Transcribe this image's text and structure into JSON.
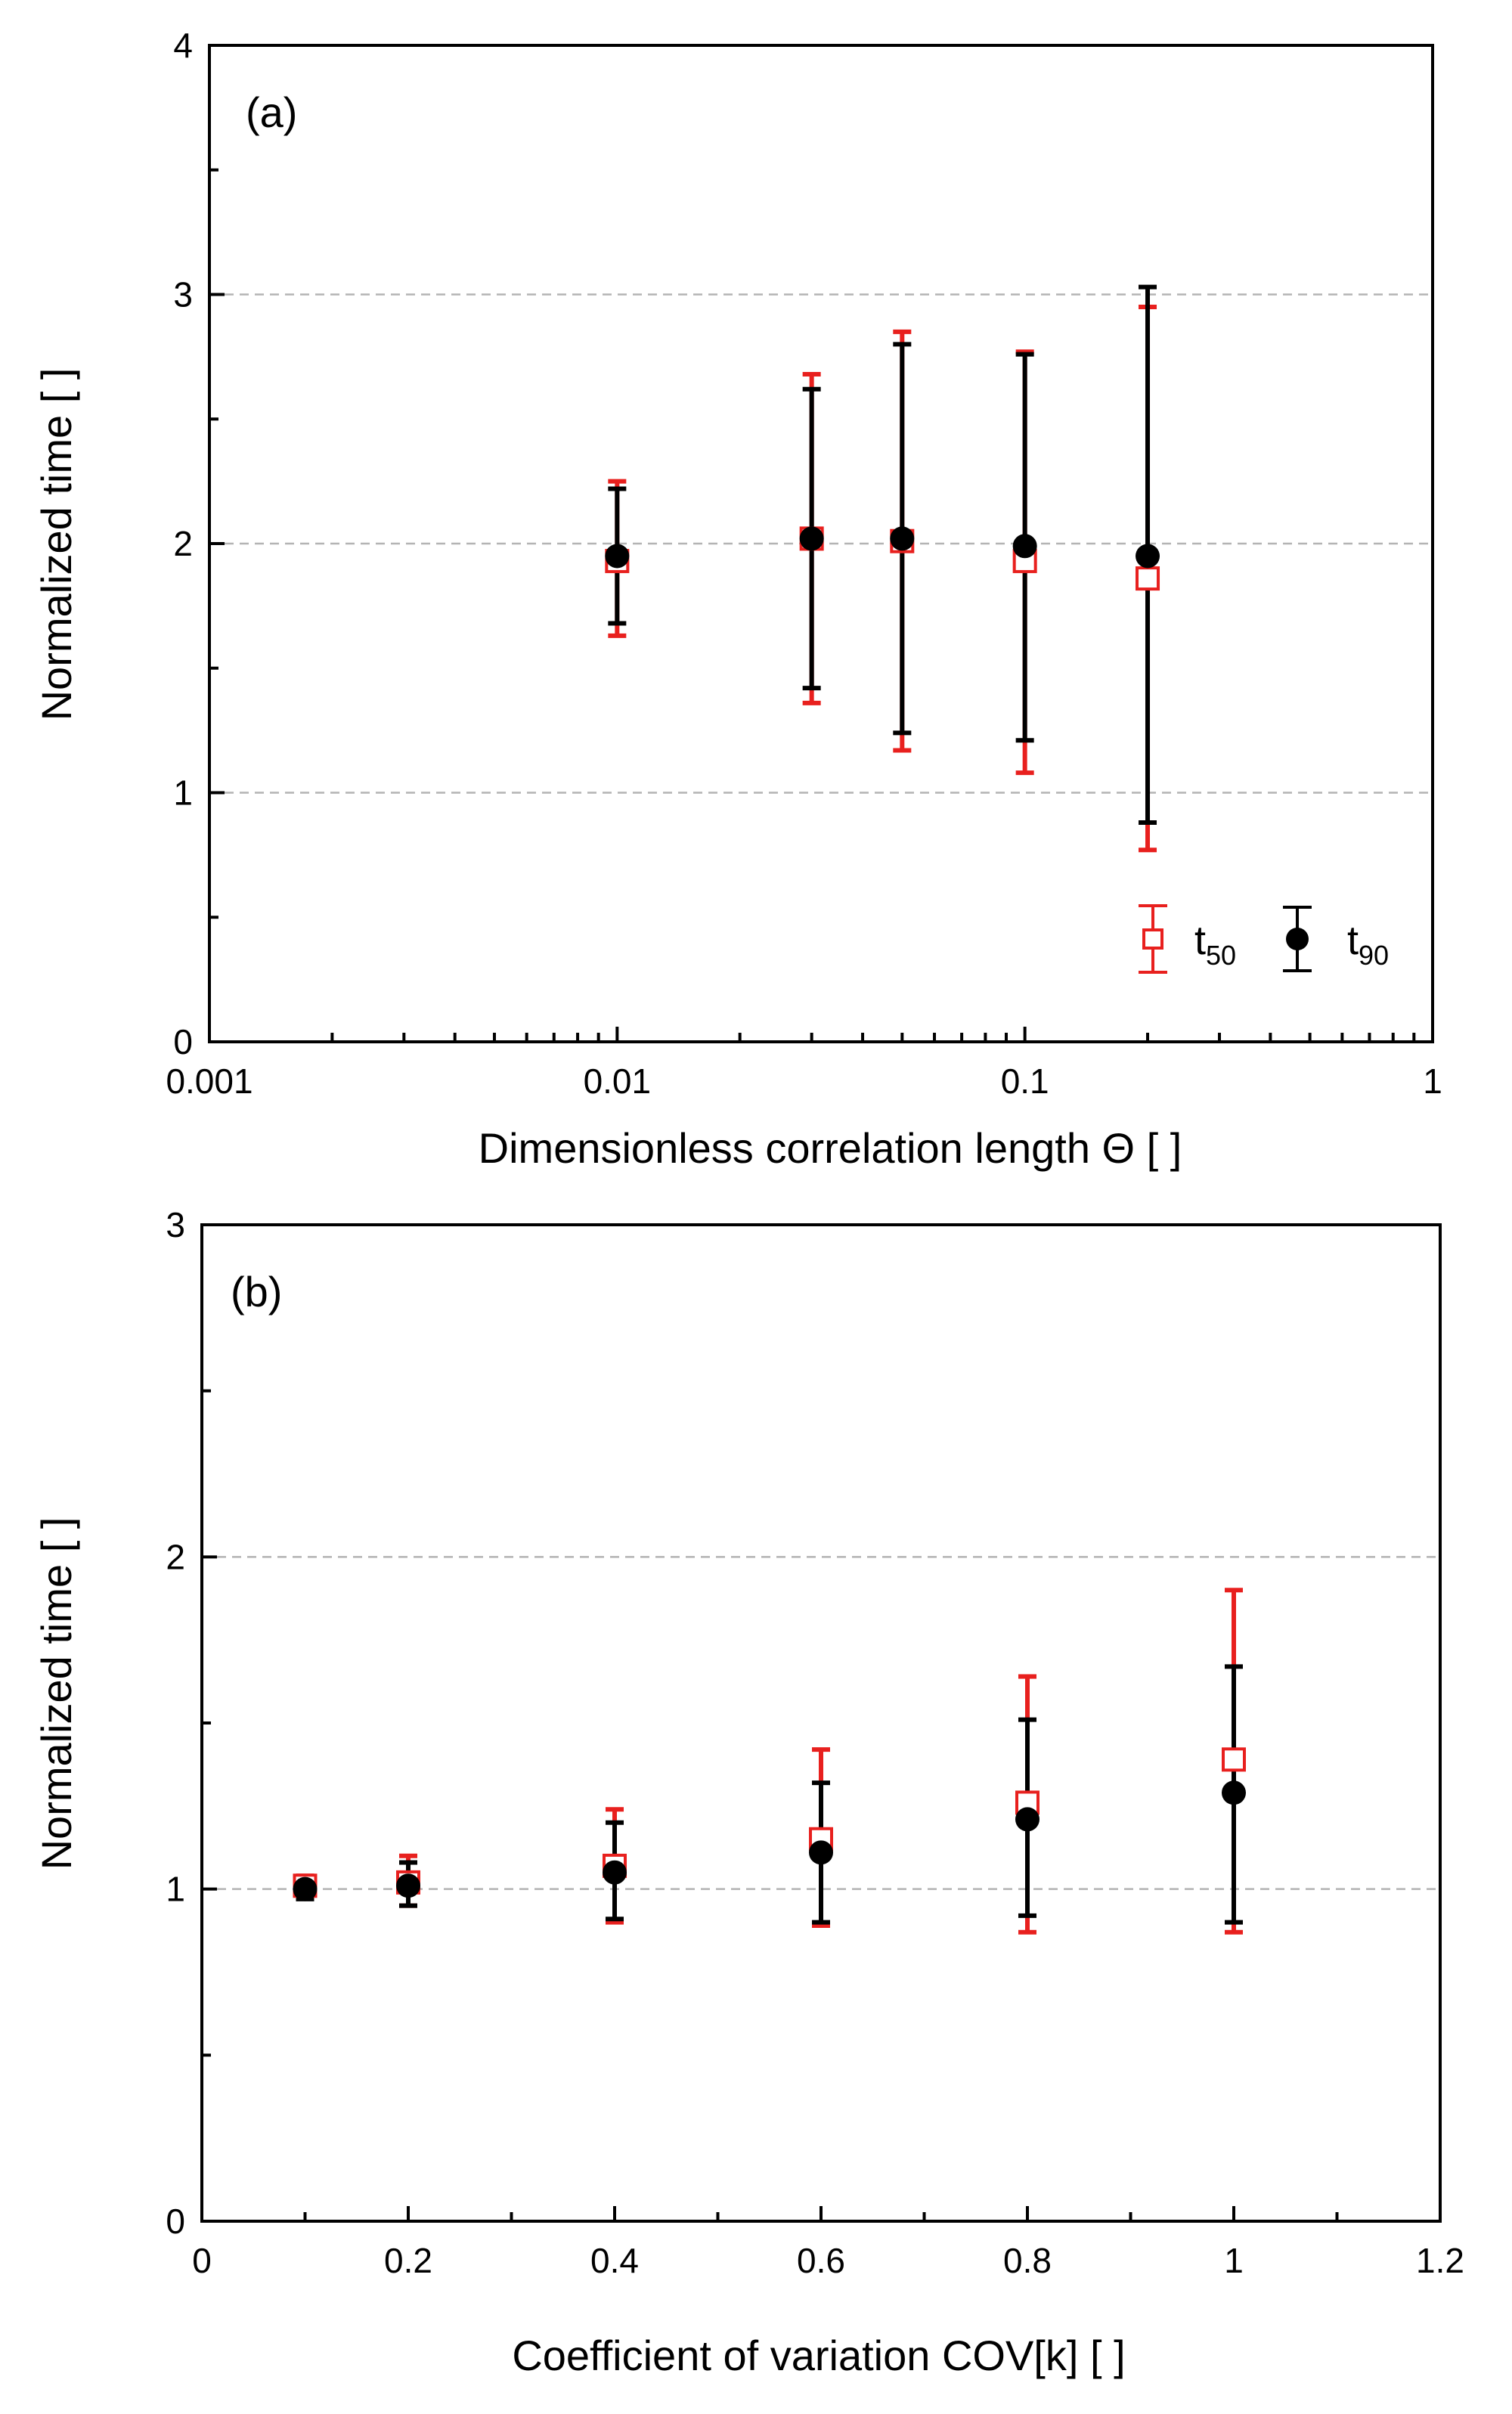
{
  "chart_data": [
    {
      "id": "a",
      "type": "scatter",
      "panel_label": "(a)",
      "xlabel": "Dimensionless correlation length Θ [ ]",
      "ylabel": "Normalized time [ ]",
      "xscale": "log",
      "xlim": [
        0.001,
        1
      ],
      "ylim": [
        0,
        4
      ],
      "x_ticks": [
        0.001,
        0.01,
        0.1,
        1
      ],
      "x_tick_labels": [
        "0.001",
        "0.01",
        "0.1",
        "1"
      ],
      "y_ticks": [
        0,
        1,
        2,
        3,
        4
      ],
      "y_tick_labels": [
        "0",
        "1",
        "2",
        "3",
        "4"
      ],
      "grid_y": [
        1,
        2,
        3
      ],
      "legend_position": "bottom-right",
      "series": [
        {
          "name": "t50",
          "name_main": "t",
          "name_sub": "50",
          "marker": "open-square",
          "color": "#e8201e",
          "x": [
            0.01,
            0.03,
            0.05,
            0.1,
            0.2
          ],
          "y": [
            1.93,
            2.02,
            2.01,
            1.93,
            1.86
          ],
          "err_low": [
            1.63,
            1.36,
            1.17,
            1.08,
            0.77
          ],
          "err_high": [
            2.25,
            2.68,
            2.85,
            2.77,
            2.95
          ]
        },
        {
          "name": "t90",
          "name_main": "t",
          "name_sub": "90",
          "marker": "filled-circle",
          "color": "#000000",
          "x": [
            0.01,
            0.03,
            0.05,
            0.1,
            0.2
          ],
          "y": [
            1.95,
            2.02,
            2.02,
            1.99,
            1.95
          ],
          "err_low": [
            1.68,
            1.42,
            1.24,
            1.21,
            0.88
          ],
          "err_high": [
            2.22,
            2.62,
            2.8,
            2.76,
            3.03
          ]
        }
      ]
    },
    {
      "id": "b",
      "type": "scatter",
      "panel_label": "(b)",
      "xlabel": "Coefficient of variation COV[k] [ ]",
      "ylabel": "Normalized time [ ]",
      "xscale": "linear",
      "xlim": [
        0,
        1.2
      ],
      "ylim": [
        0,
        3
      ],
      "x_ticks": [
        0,
        0.2,
        0.4,
        0.6,
        0.8,
        1,
        1.2
      ],
      "x_tick_labels": [
        "0",
        "0.2",
        "0.4",
        "0.6",
        "0.8",
        "1",
        "1.2"
      ],
      "y_ticks": [
        0,
        1,
        2,
        3
      ],
      "y_tick_labels": [
        "0",
        "1",
        "2",
        "3"
      ],
      "grid_y": [
        1,
        2
      ],
      "series": [
        {
          "name": "t50",
          "marker": "open-square",
          "color": "#e8201e",
          "x": [
            0.1,
            0.2,
            0.4,
            0.6,
            0.8,
            1.0
          ],
          "y": [
            1.01,
            1.02,
            1.07,
            1.15,
            1.26,
            1.39
          ],
          "err_low": [
            0.98,
            0.95,
            0.9,
            0.89,
            0.87,
            0.87
          ],
          "err_high": [
            1.04,
            1.1,
            1.24,
            1.42,
            1.64,
            1.9
          ]
        },
        {
          "name": "t90",
          "marker": "filled-circle",
          "color": "#000000",
          "x": [
            0.1,
            0.2,
            0.4,
            0.6,
            0.8,
            1.0
          ],
          "y": [
            1.0,
            1.01,
            1.05,
            1.11,
            1.21,
            1.29
          ],
          "err_low": [
            0.97,
            0.95,
            0.91,
            0.9,
            0.92,
            0.9
          ],
          "err_high": [
            1.03,
            1.08,
            1.2,
            1.32,
            1.51,
            1.67
          ]
        }
      ]
    }
  ],
  "colors": {
    "t50": "#e8201e",
    "t90": "#000000",
    "grid": "#b4b4b4",
    "axis": "#000000"
  }
}
